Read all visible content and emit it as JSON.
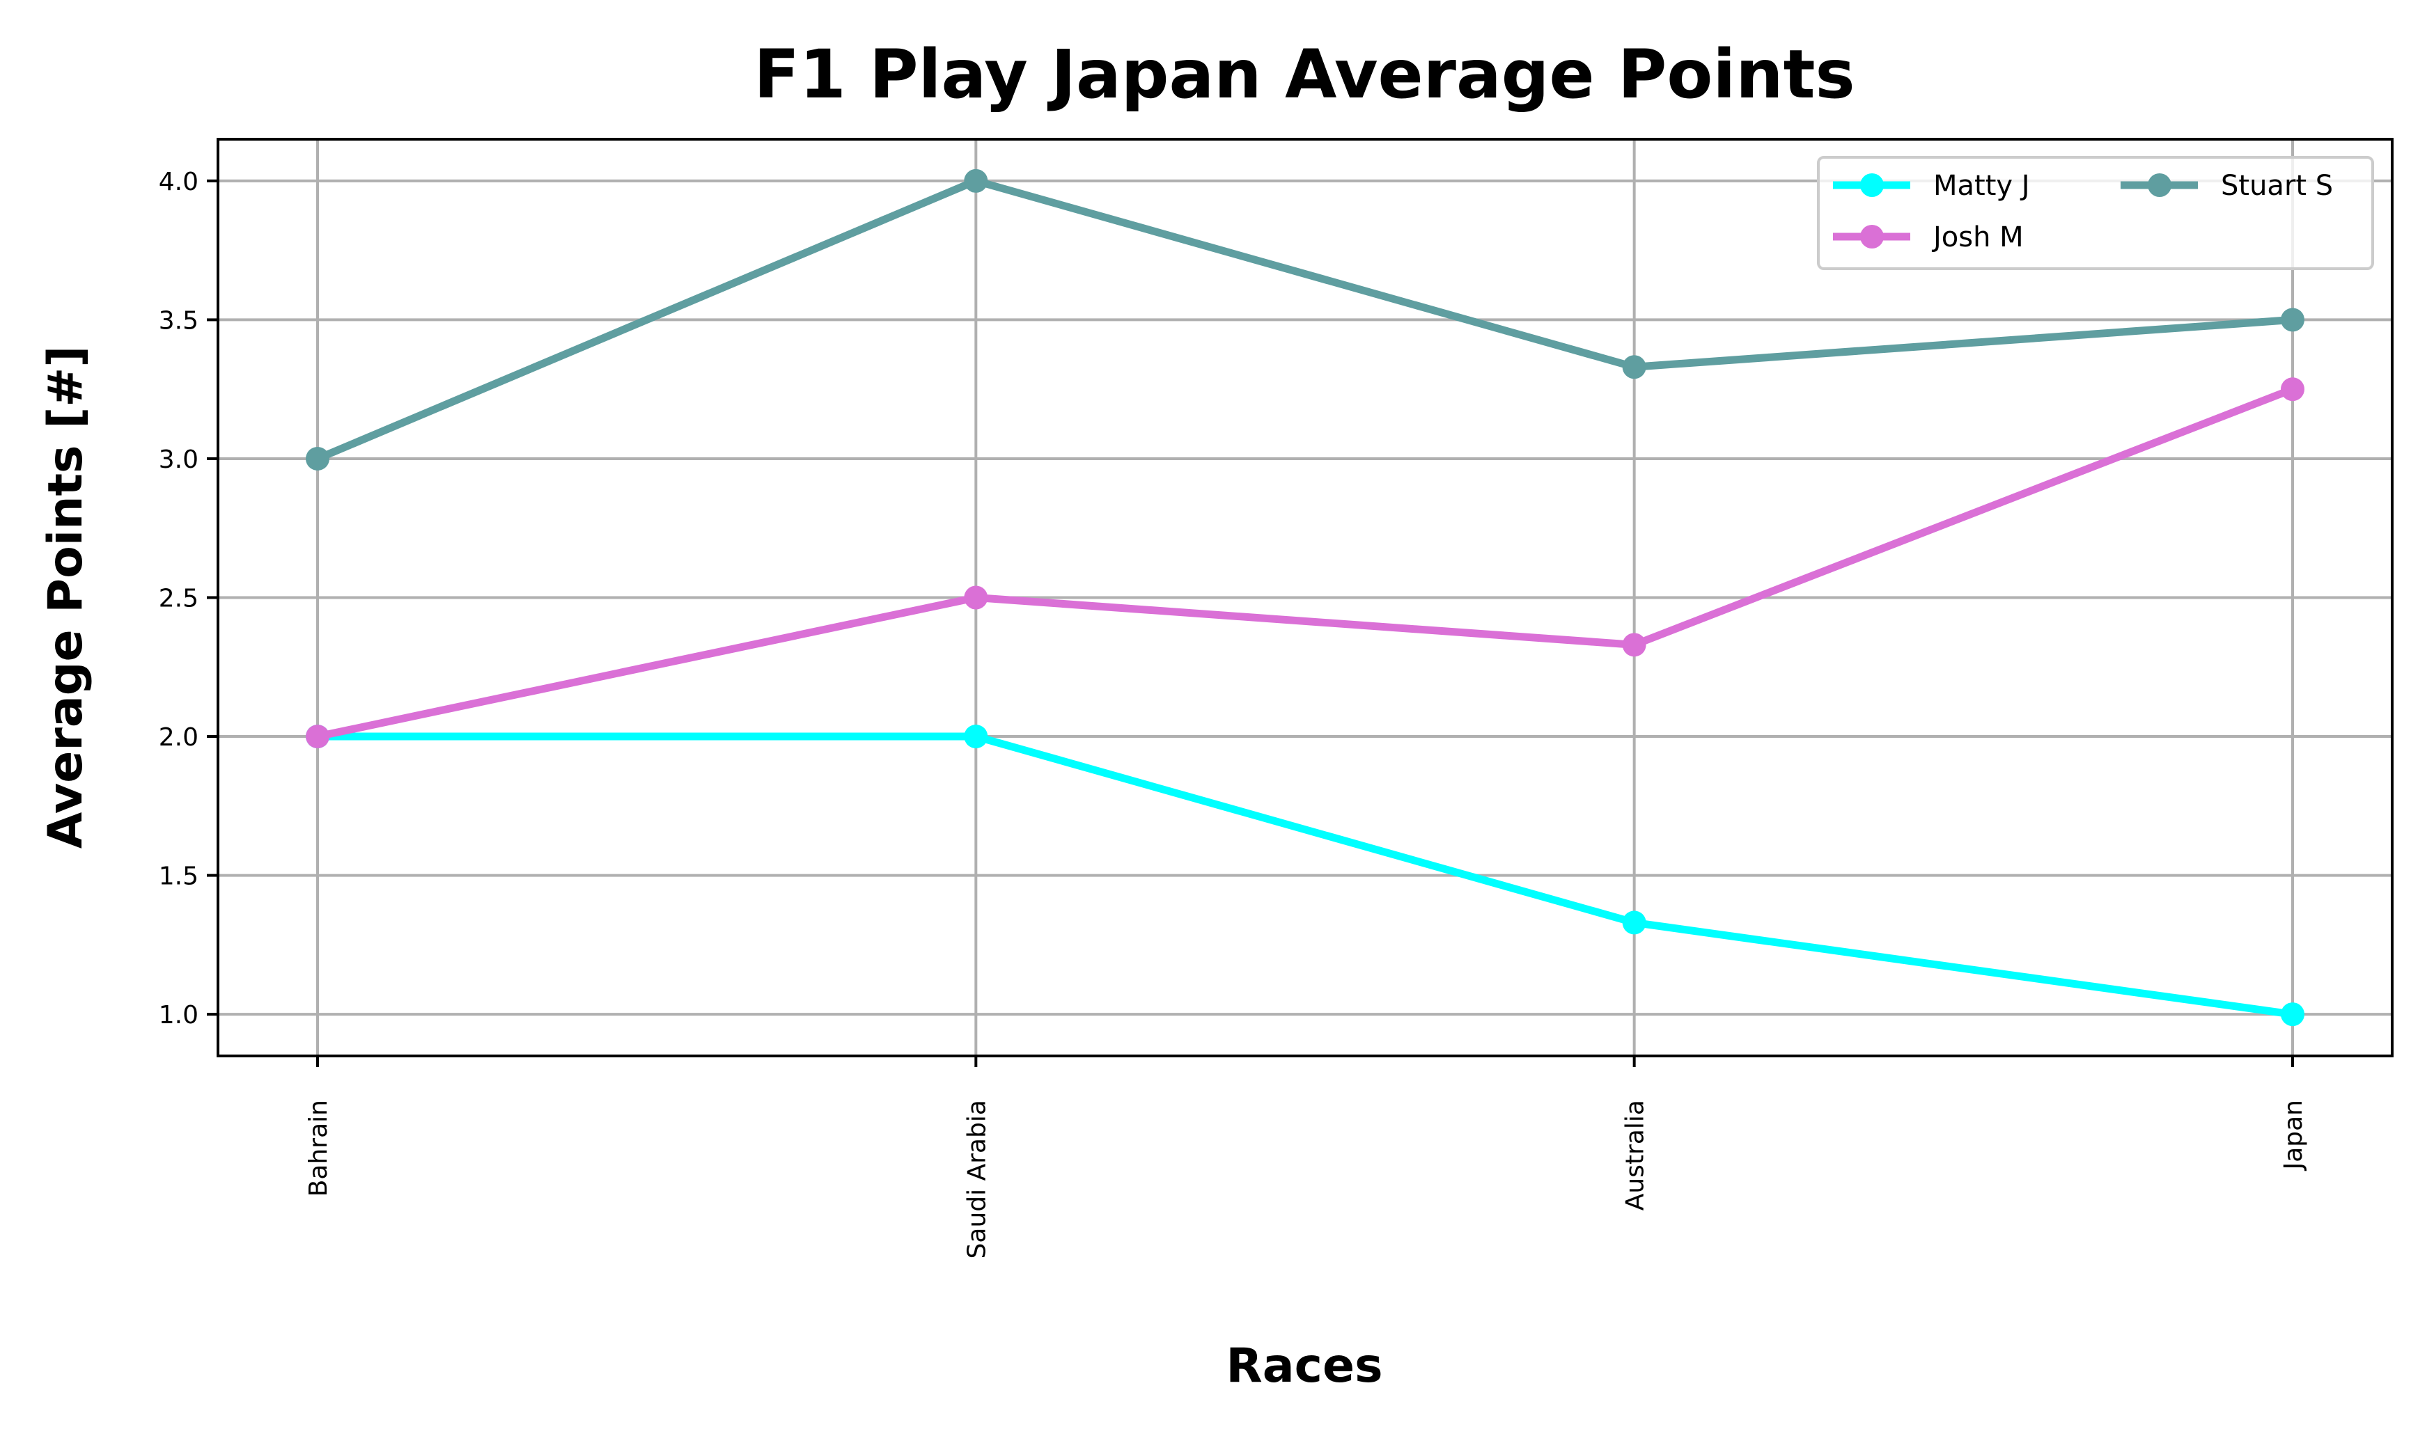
{
  "chart_data": {
    "type": "line",
    "title": "F1 Play Japan Average Points",
    "xlabel": "Races",
    "ylabel": "Average Points [#]",
    "categories": [
      "Bahrain",
      "Saudi Arabia",
      "Australia",
      "Japan"
    ],
    "ylim": [
      0.85,
      4.15
    ],
    "yticks": [
      "1.0",
      "1.5",
      "2.0",
      "2.5",
      "3.0",
      "3.5",
      "4.0"
    ],
    "grid": true,
    "legend_position": "top-right",
    "series": [
      {
        "name": "Matty J",
        "color": "#00ffff",
        "values": [
          2.0,
          2.0,
          1.33,
          1.0
        ]
      },
      {
        "name": "Josh M",
        "color": "#da70d6",
        "values": [
          2.0,
          2.5,
          2.33,
          3.25
        ]
      },
      {
        "name": "Stuart S",
        "color": "#5f9ea0",
        "values": [
          3.0,
          4.0,
          3.33,
          3.5
        ]
      }
    ]
  }
}
